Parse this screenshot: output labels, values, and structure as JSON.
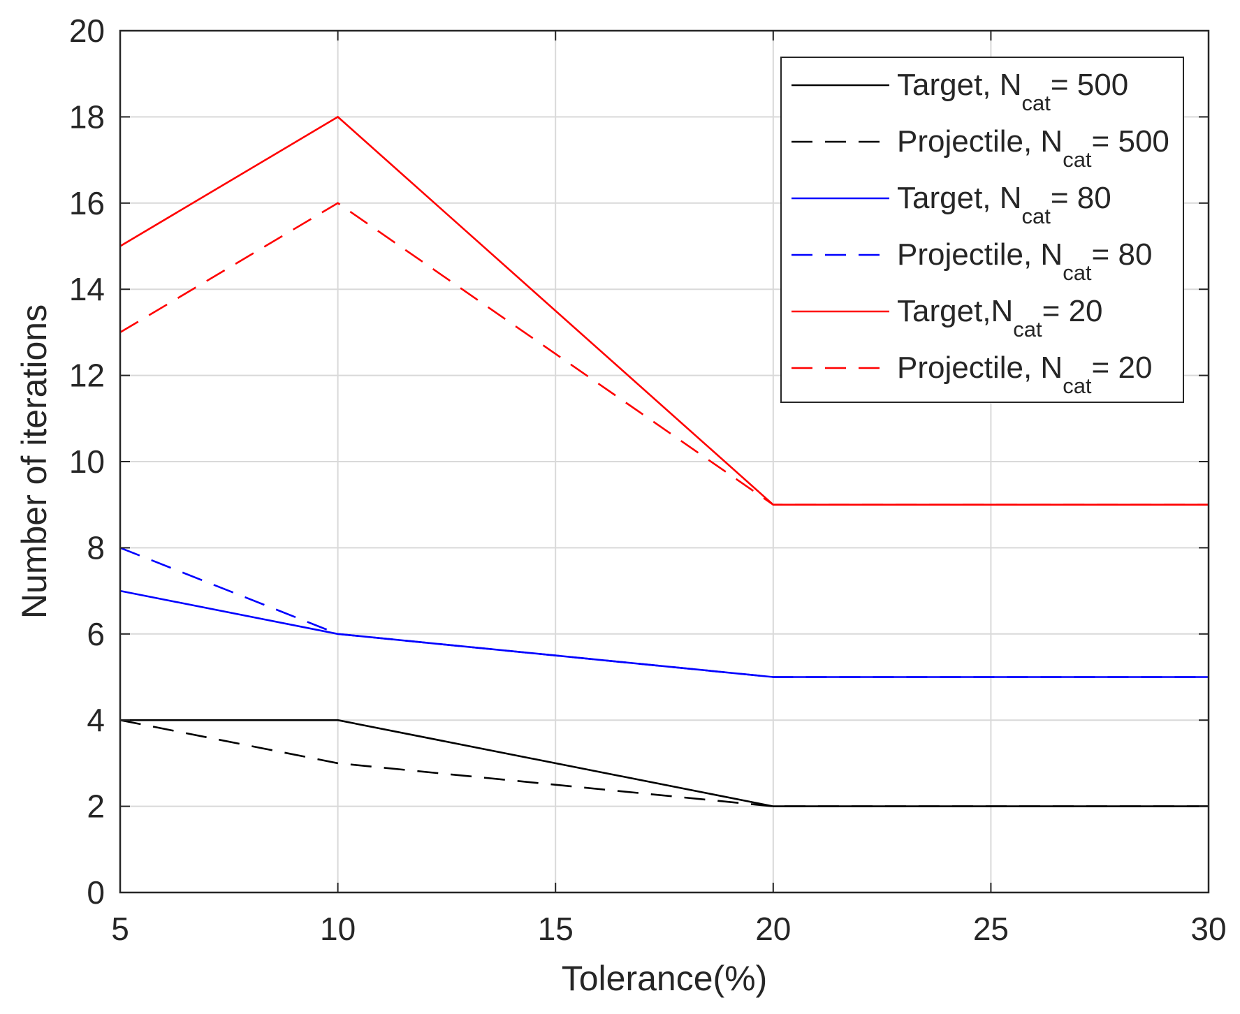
{
  "chart_data": {
    "type": "line",
    "title": "",
    "xlabel": "Tolerance(%)",
    "ylabel": "Number of iterations",
    "xlim": [
      5,
      30
    ],
    "ylim": [
      0,
      20
    ],
    "xticks": [
      5,
      10,
      15,
      20,
      25,
      30
    ],
    "yticks": [
      0,
      2,
      4,
      6,
      8,
      10,
      12,
      14,
      16,
      18,
      20
    ],
    "grid": true,
    "legend_position": "top-right",
    "x": [
      5,
      10,
      20,
      30
    ],
    "series": [
      {
        "name": "Target, N_cat = 500",
        "label_main": "Target, N",
        "label_sub": "cat",
        "label_tail": "= 500",
        "color": "#000000",
        "dashed": false,
        "values": [
          4,
          4,
          2,
          2
        ]
      },
      {
        "name": "Projectile, N_cat = 500",
        "label_main": "Projectile, N",
        "label_sub": "cat",
        "label_tail": "= 500",
        "color": "#000000",
        "dashed": true,
        "values": [
          4,
          3,
          2,
          2
        ]
      },
      {
        "name": "Target, N_cat = 80",
        "label_main": "Target, N",
        "label_sub": "cat",
        "label_tail": "= 80",
        "color": "#0000ff",
        "dashed": false,
        "values": [
          7,
          6,
          5,
          5
        ]
      },
      {
        "name": "Projectile, N_cat = 80",
        "label_main": "Projectile, N",
        "label_sub": "cat",
        "label_tail": "= 80",
        "color": "#0000ff",
        "dashed": true,
        "values": [
          8,
          6,
          5,
          5
        ]
      },
      {
        "name": "Target,N_cat = 20",
        "label_main": "Target,N",
        "label_sub": "cat",
        "label_tail": "= 20",
        "color": "#ff0000",
        "dashed": false,
        "values": [
          15,
          18,
          9,
          9
        ]
      },
      {
        "name": "Projectile, N_cat = 20",
        "label_main": "Projectile, N",
        "label_sub": "cat",
        "label_tail": "= 20",
        "color": "#ff0000",
        "dashed": true,
        "values": [
          13,
          16,
          9,
          9
        ]
      }
    ]
  }
}
